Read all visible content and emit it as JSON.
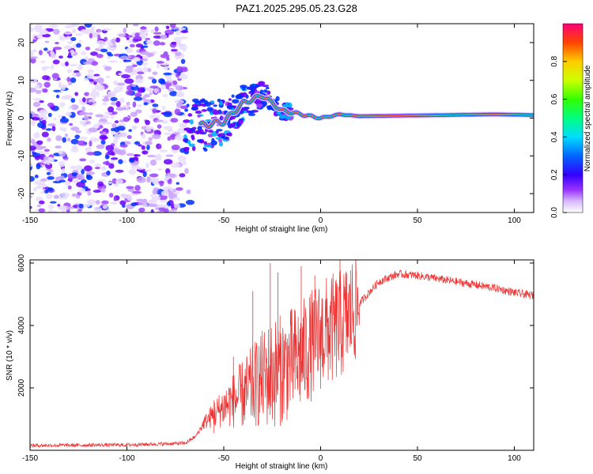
{
  "title": "PAZ1.2025.295.05.23.G28",
  "chart_data": [
    {
      "type": "heatmap",
      "name": "spectrogram",
      "xlabel": "Height of straight line (km)",
      "ylabel": "Frequency (Hz)",
      "xlim": [
        -150,
        110
      ],
      "ylim": [
        -25,
        25
      ],
      "xticks": [
        -150,
        -100,
        -50,
        0,
        50,
        100
      ],
      "yticks": [
        -20,
        -10,
        0,
        10,
        20
      ],
      "colorbar": {
        "label": "Normalized spectral amplitude",
        "range": [
          0,
          1
        ],
        "ticks": [
          0.0,
          0.2,
          0.4,
          0.6,
          0.8
        ],
        "colors": [
          "#ffffff",
          "#c89cff",
          "#7a00ff",
          "#0000ff",
          "#00c8ff",
          "#00ff40",
          "#ffff00",
          "#ff8000",
          "#ff0000",
          "#ff0080"
        ]
      },
      "description_values": {
        "noise_region_km": [
          -150,
          -70
        ],
        "signal_track": [
          {
            "x": -62,
            "f": -2
          },
          {
            "x": -50,
            "f": -1
          },
          {
            "x": -40,
            "f": 4
          },
          {
            "x": -30,
            "f": 6
          },
          {
            "x": -20,
            "f": 2
          },
          {
            "x": -10,
            "f": 1
          },
          {
            "x": 0,
            "f": 0
          },
          {
            "x": 10,
            "f": 1
          },
          {
            "x": 20,
            "f": 0.5
          },
          {
            "x": 50,
            "f": 0.7
          },
          {
            "x": 90,
            "f": 1
          },
          {
            "x": 110,
            "f": 0.8
          }
        ]
      }
    },
    {
      "type": "line",
      "name": "snr",
      "xlabel": "Height of straight line (km)",
      "ylabel": "SNR (10 * v/v)",
      "xlim": [
        -150,
        110
      ],
      "ylim": [
        0,
        6100
      ],
      "xticks": [
        -150,
        -100,
        -50,
        0,
        50,
        100
      ],
      "yticks": [
        2000,
        4000,
        6000
      ],
      "color": "#ee3333",
      "envelope": {
        "x": [
          -150,
          -100,
          -70,
          -65,
          -60,
          -50,
          -40,
          -30,
          -20,
          -10,
          0,
          10,
          20,
          30,
          40,
          50,
          60,
          70,
          80,
          90,
          100,
          110
        ],
        "y": [
          130,
          150,
          200,
          400,
          900,
          1400,
          1800,
          2300,
          2600,
          3000,
          3700,
          4000,
          4700,
          5400,
          5650,
          5600,
          5500,
          5400,
          5300,
          5200,
          5050,
          4950
        ]
      },
      "spikes": [
        {
          "x": -55,
          "y": 1600
        },
        {
          "x": -45,
          "y": 3000
        },
        {
          "x": -35,
          "y": 5100
        },
        {
          "x": -26,
          "y": 6000
        },
        {
          "x": -22,
          "y": 5700
        },
        {
          "x": -10,
          "y": 5900
        },
        {
          "x": -3,
          "y": 5600
        },
        {
          "x": 10,
          "y": 6100
        }
      ]
    }
  ]
}
